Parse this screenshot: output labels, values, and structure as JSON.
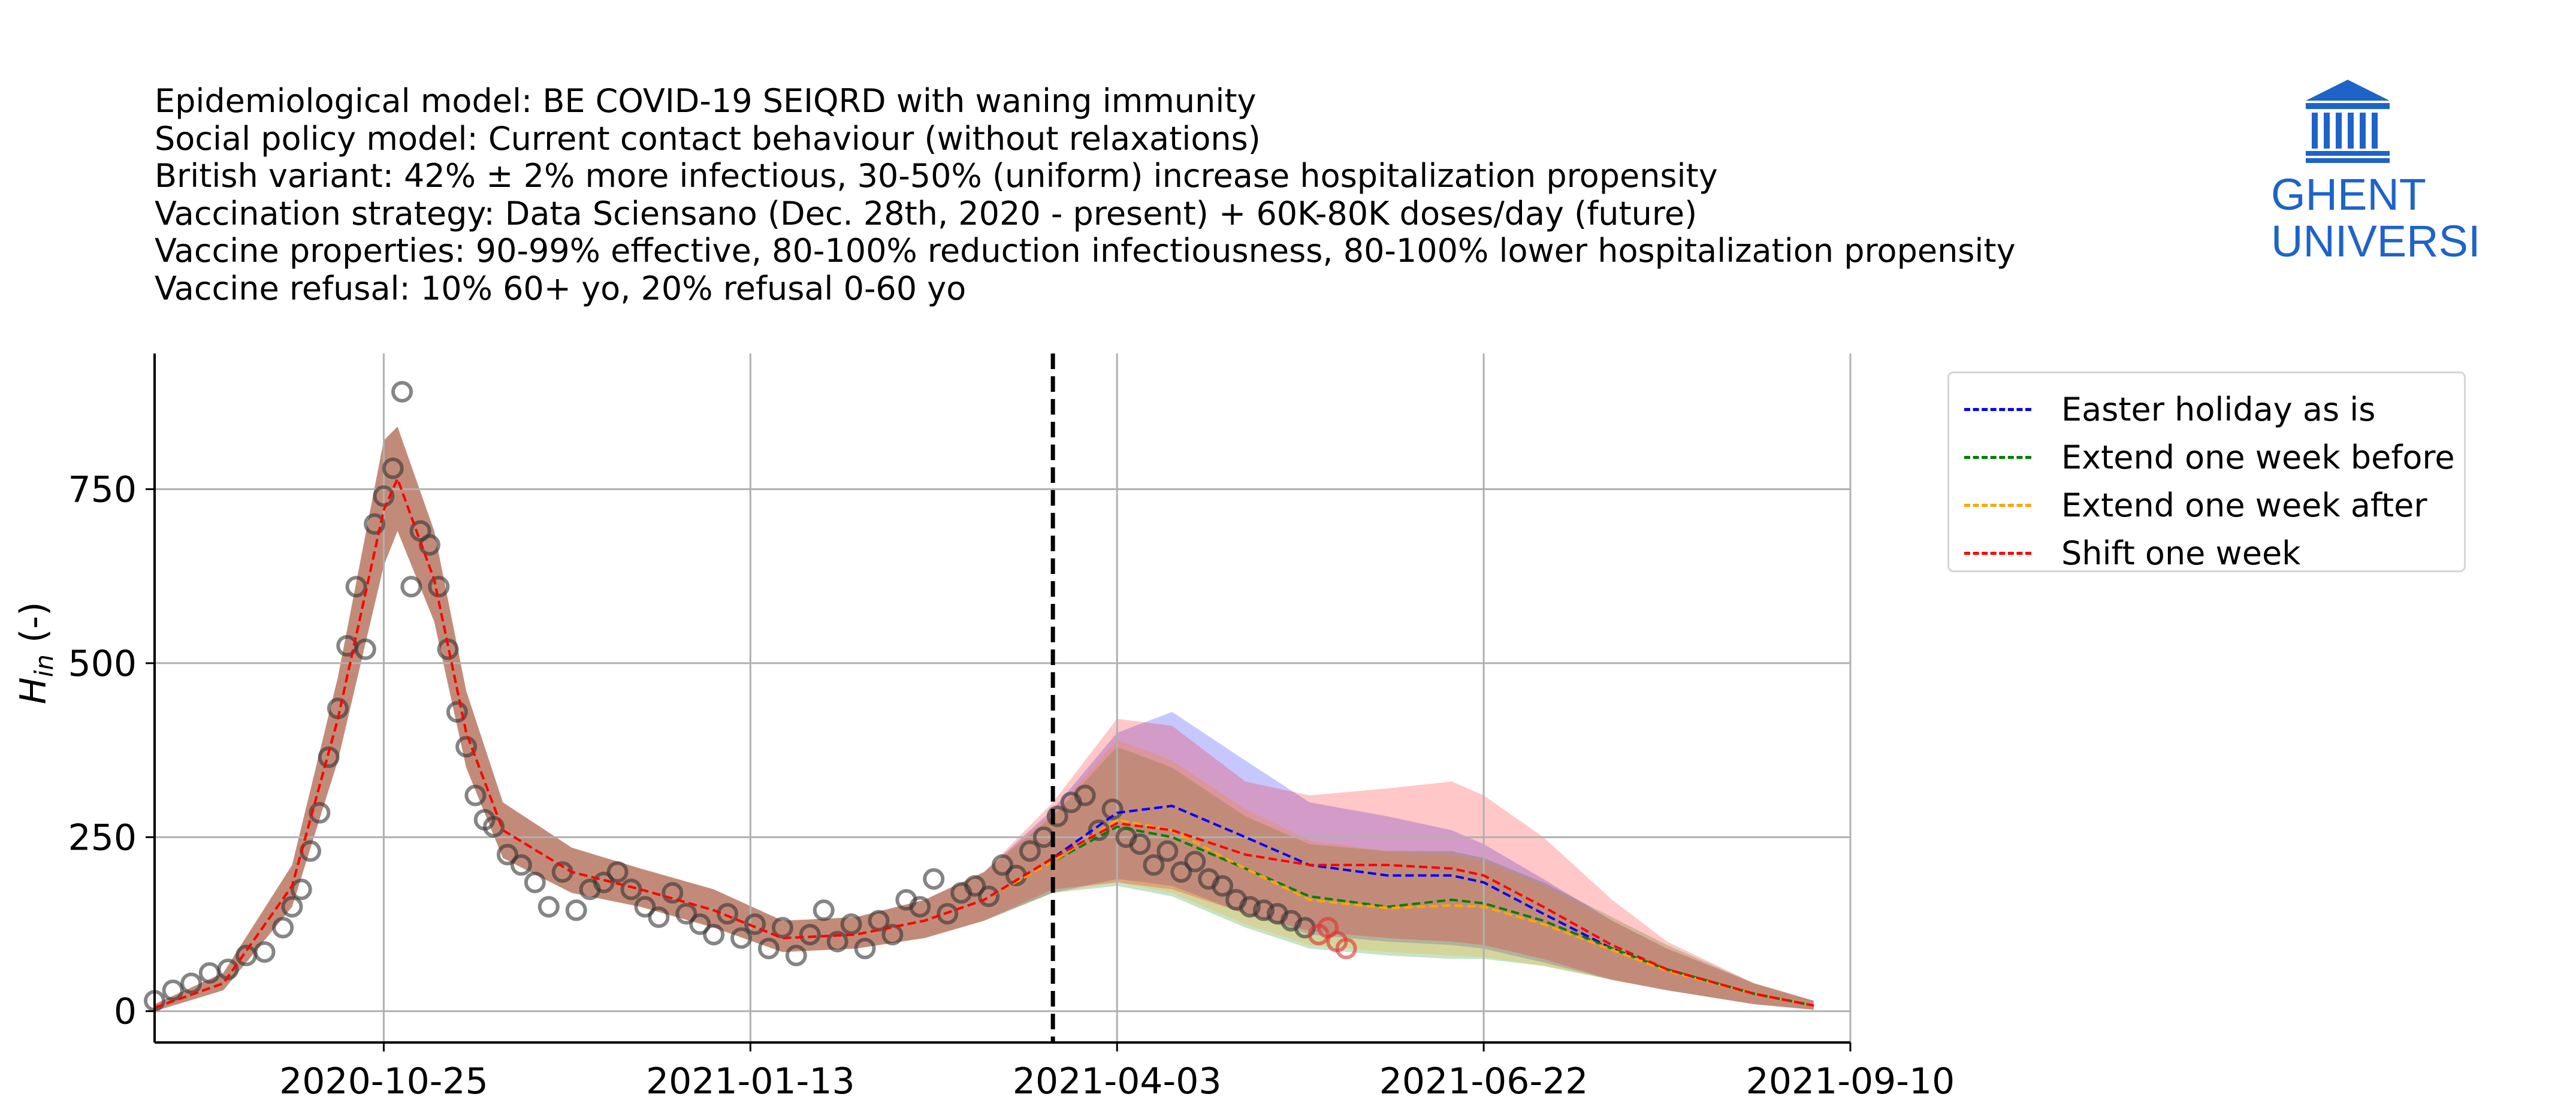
{
  "header": {
    "lines": [
      "Epidemiological model: BE COVID-19 SEIQRD with waning immunity",
      "Social policy model: Current contact behaviour (without relaxations)",
      "British variant: 42% ± 2% more infectious, 30-50% (uniform) increase hospitalization propensity",
      "Vaccination strategy: Data Sciensano (Dec. 28th, 2020 - present) + 60K-80K doses/day (future)",
      "Vaccine properties: 90-99% effective, 80-100% reduction infectiousness, 80-100% lower hospitalization propensity",
      "Vaccine refusal: 10% 60+ yo, 20% refusal 0-60 yo"
    ]
  },
  "logo": {
    "line1": "GHENT",
    "line2": "UNIVERSITY",
    "color": "#1e64c8",
    "icon": "university-building-icon"
  },
  "chart_data": {
    "type": "line",
    "x_type": "date",
    "xlim": [
      "2020-09-05",
      "2021-09-10"
    ],
    "ylim": [
      -45,
      945
    ],
    "x_ticks": [
      "2020-10-25",
      "2021-01-13",
      "2021-04-03",
      "2021-06-22",
      "2021-09-10"
    ],
    "y_ticks": [
      0,
      250,
      500,
      750
    ],
    "ylabel_main": "H",
    "ylabel_sub": "in",
    "ylabel_suffix": " (-)",
    "grid": true,
    "legend_position": "outside-right",
    "vline": {
      "date": "2021-03-20",
      "style": "dashed",
      "color": "#000000"
    },
    "series": [
      {
        "name": "Easter holiday as is",
        "color": "#0000ff",
        "x": [
          "2020-09-05",
          "2020-09-20",
          "2020-10-05",
          "2020-10-15",
          "2020-10-25",
          "2020-10-28",
          "2020-11-05",
          "2020-11-12",
          "2020-11-20",
          "2020-12-05",
          "2020-12-20",
          "2021-01-05",
          "2021-01-20",
          "2021-02-05",
          "2021-02-20",
          "2021-03-05",
          "2021-03-20",
          "2021-04-03",
          "2021-04-15",
          "2021-05-01",
          "2021-05-15",
          "2021-06-01",
          "2021-06-15",
          "2021-06-22",
          "2021-07-05",
          "2021-07-20",
          "2021-08-01",
          "2021-08-20",
          "2021-09-02"
        ],
        "values": [
          5,
          40,
          180,
          420,
          720,
          765,
          620,
          400,
          260,
          200,
          175,
          145,
          105,
          110,
          130,
          160,
          220,
          285,
          295,
          250,
          210,
          195,
          195,
          185,
          140,
          90,
          60,
          25,
          8
        ],
        "lower": [
          0,
          30,
          150,
          360,
          640,
          690,
          560,
          350,
          220,
          170,
          150,
          120,
          85,
          90,
          105,
          130,
          170,
          190,
          180,
          140,
          110,
          100,
          95,
          90,
          70,
          45,
          30,
          10,
          2
        ],
        "upper": [
          10,
          55,
          210,
          480,
          820,
          840,
          690,
          460,
          300,
          235,
          205,
          175,
          130,
          135,
          160,
          200,
          290,
          400,
          430,
          360,
          300,
          280,
          260,
          240,
          190,
          130,
          90,
          40,
          15
        ]
      },
      {
        "name": "Extend one week before",
        "color": "#008000",
        "x": [
          "2020-09-05",
          "2020-09-20",
          "2020-10-05",
          "2020-10-15",
          "2020-10-25",
          "2020-10-28",
          "2020-11-05",
          "2020-11-12",
          "2020-11-20",
          "2020-12-05",
          "2020-12-20",
          "2021-01-05",
          "2021-01-20",
          "2021-02-05",
          "2021-02-20",
          "2021-03-05",
          "2021-03-20",
          "2021-04-03",
          "2021-04-15",
          "2021-05-01",
          "2021-05-15",
          "2021-06-01",
          "2021-06-15",
          "2021-06-22",
          "2021-07-05",
          "2021-07-20",
          "2021-08-01",
          "2021-08-20",
          "2021-09-02"
        ],
        "values": [
          5,
          40,
          180,
          420,
          720,
          765,
          620,
          400,
          260,
          200,
          175,
          145,
          105,
          110,
          130,
          160,
          215,
          265,
          250,
          205,
          165,
          150,
          160,
          155,
          130,
          90,
          60,
          25,
          8
        ],
        "lower": [
          0,
          30,
          150,
          360,
          640,
          690,
          560,
          350,
          220,
          170,
          150,
          120,
          85,
          90,
          105,
          130,
          170,
          180,
          165,
          120,
          90,
          80,
          75,
          75,
          65,
          45,
          30,
          10,
          2
        ],
        "upper": [
          10,
          55,
          210,
          480,
          820,
          840,
          690,
          460,
          300,
          235,
          205,
          175,
          130,
          135,
          160,
          200,
          280,
          380,
          350,
          280,
          240,
          230,
          230,
          220,
          185,
          135,
          95,
          40,
          15
        ]
      },
      {
        "name": "Extend one week after",
        "color": "#ffa500",
        "x": [
          "2020-09-05",
          "2020-09-20",
          "2020-10-05",
          "2020-10-15",
          "2020-10-25",
          "2020-10-28",
          "2020-11-05",
          "2020-11-12",
          "2020-11-20",
          "2020-12-05",
          "2020-12-20",
          "2021-01-05",
          "2021-01-20",
          "2021-02-05",
          "2021-02-20",
          "2021-03-05",
          "2021-03-20",
          "2021-04-03",
          "2021-04-15",
          "2021-05-01",
          "2021-05-15",
          "2021-06-01",
          "2021-06-15",
          "2021-06-22",
          "2021-07-05",
          "2021-07-20",
          "2021-08-01",
          "2021-08-20",
          "2021-09-02"
        ],
        "values": [
          5,
          40,
          180,
          420,
          720,
          765,
          620,
          400,
          260,
          200,
          175,
          145,
          105,
          110,
          130,
          160,
          215,
          275,
          260,
          205,
          160,
          148,
          152,
          150,
          125,
          88,
          58,
          25,
          8
        ],
        "lower": [
          0,
          30,
          150,
          360,
          640,
          690,
          560,
          350,
          220,
          170,
          150,
          120,
          85,
          90,
          105,
          130,
          170,
          185,
          170,
          125,
          95,
          85,
          80,
          78,
          65,
          45,
          30,
          10,
          2
        ],
        "upper": [
          10,
          55,
          210,
          480,
          820,
          840,
          690,
          460,
          300,
          235,
          205,
          175,
          130,
          135,
          160,
          200,
          285,
          390,
          360,
          290,
          245,
          230,
          225,
          215,
          180,
          130,
          90,
          40,
          15
        ]
      },
      {
        "name": "Shift one week",
        "color": "#ff0000",
        "x": [
          "2020-09-05",
          "2020-09-20",
          "2020-10-05",
          "2020-10-15",
          "2020-10-25",
          "2020-10-28",
          "2020-11-05",
          "2020-11-12",
          "2020-11-20",
          "2020-12-05",
          "2020-12-20",
          "2021-01-05",
          "2021-01-20",
          "2021-02-05",
          "2021-02-20",
          "2021-03-05",
          "2021-03-20",
          "2021-04-03",
          "2021-04-15",
          "2021-05-01",
          "2021-05-15",
          "2021-06-01",
          "2021-06-15",
          "2021-06-22",
          "2021-07-05",
          "2021-07-20",
          "2021-08-01",
          "2021-08-20",
          "2021-09-02"
        ],
        "values": [
          5,
          40,
          180,
          420,
          720,
          765,
          620,
          400,
          260,
          200,
          175,
          145,
          105,
          110,
          130,
          160,
          220,
          270,
          260,
          225,
          210,
          210,
          205,
          195,
          150,
          95,
          60,
          25,
          8
        ],
        "lower": [
          0,
          30,
          150,
          360,
          640,
          690,
          560,
          350,
          220,
          170,
          150,
          120,
          85,
          90,
          105,
          130,
          175,
          185,
          175,
          140,
          115,
          105,
          100,
          95,
          75,
          45,
          30,
          10,
          2
        ],
        "upper": [
          10,
          55,
          210,
          480,
          820,
          840,
          690,
          460,
          300,
          235,
          205,
          175,
          130,
          135,
          160,
          200,
          300,
          420,
          410,
          330,
          310,
          320,
          330,
          310,
          250,
          160,
          100,
          40,
          15
        ]
      }
    ],
    "observations": {
      "color": "#333333",
      "x": [
        "2020-09-05",
        "2020-09-09",
        "2020-09-13",
        "2020-09-17",
        "2020-09-21",
        "2020-09-25",
        "2020-09-29",
        "2020-10-03",
        "2020-10-05",
        "2020-10-07",
        "2020-10-09",
        "2020-10-11",
        "2020-10-13",
        "2020-10-15",
        "2020-10-17",
        "2020-10-19",
        "2020-10-21",
        "2020-10-23",
        "2020-10-25",
        "2020-10-27",
        "2020-10-29",
        "2020-10-31",
        "2020-11-02",
        "2020-11-04",
        "2020-11-06",
        "2020-11-08",
        "2020-11-10",
        "2020-11-12",
        "2020-11-14",
        "2020-11-16",
        "2020-11-18",
        "2020-11-21",
        "2020-11-24",
        "2020-11-27",
        "2020-11-30",
        "2020-12-03",
        "2020-12-06",
        "2020-12-09",
        "2020-12-12",
        "2020-12-15",
        "2020-12-18",
        "2020-12-21",
        "2020-12-24",
        "2020-12-27",
        "2020-12-30",
        "2021-01-02",
        "2021-01-05",
        "2021-01-08",
        "2021-01-11",
        "2021-01-14",
        "2021-01-17",
        "2021-01-20",
        "2021-01-23",
        "2021-01-26",
        "2021-01-29",
        "2021-02-01",
        "2021-02-04",
        "2021-02-07",
        "2021-02-10",
        "2021-02-13",
        "2021-02-16",
        "2021-02-19",
        "2021-02-22",
        "2021-02-25",
        "2021-02-28",
        "2021-03-03",
        "2021-03-06",
        "2021-03-09",
        "2021-03-12",
        "2021-03-15",
        "2021-03-18",
        "2021-03-21",
        "2021-03-24",
        "2021-03-27",
        "2021-03-30",
        "2021-04-02",
        "2021-04-05",
        "2021-04-08",
        "2021-04-11",
        "2021-04-14",
        "2021-04-17",
        "2021-04-20",
        "2021-04-23",
        "2021-04-26",
        "2021-04-29",
        "2021-05-02",
        "2021-05-05",
        "2021-05-08",
        "2021-05-11",
        "2021-05-14",
        "2021-05-17",
        "2021-05-19",
        "2021-05-21",
        "2021-05-23"
      ],
      "values": [
        15,
        30,
        40,
        55,
        60,
        80,
        85,
        120,
        150,
        175,
        230,
        285,
        365,
        435,
        525,
        610,
        520,
        700,
        740,
        780,
        890,
        610,
        690,
        670,
        610,
        520,
        430,
        380,
        310,
        275,
        265,
        225,
        210,
        185,
        150,
        200,
        145,
        175,
        185,
        200,
        175,
        150,
        135,
        170,
        140,
        125,
        110,
        140,
        105,
        125,
        90,
        120,
        80,
        110,
        145,
        100,
        125,
        90,
        130,
        110,
        160,
        150,
        190,
        140,
        170,
        180,
        165,
        210,
        195,
        230,
        250,
        280,
        300,
        310,
        260,
        290,
        250,
        240,
        210,
        230,
        200,
        215,
        190,
        180,
        160,
        150,
        145,
        140,
        130,
        120,
        110,
        120,
        100,
        90
      ]
    }
  }
}
